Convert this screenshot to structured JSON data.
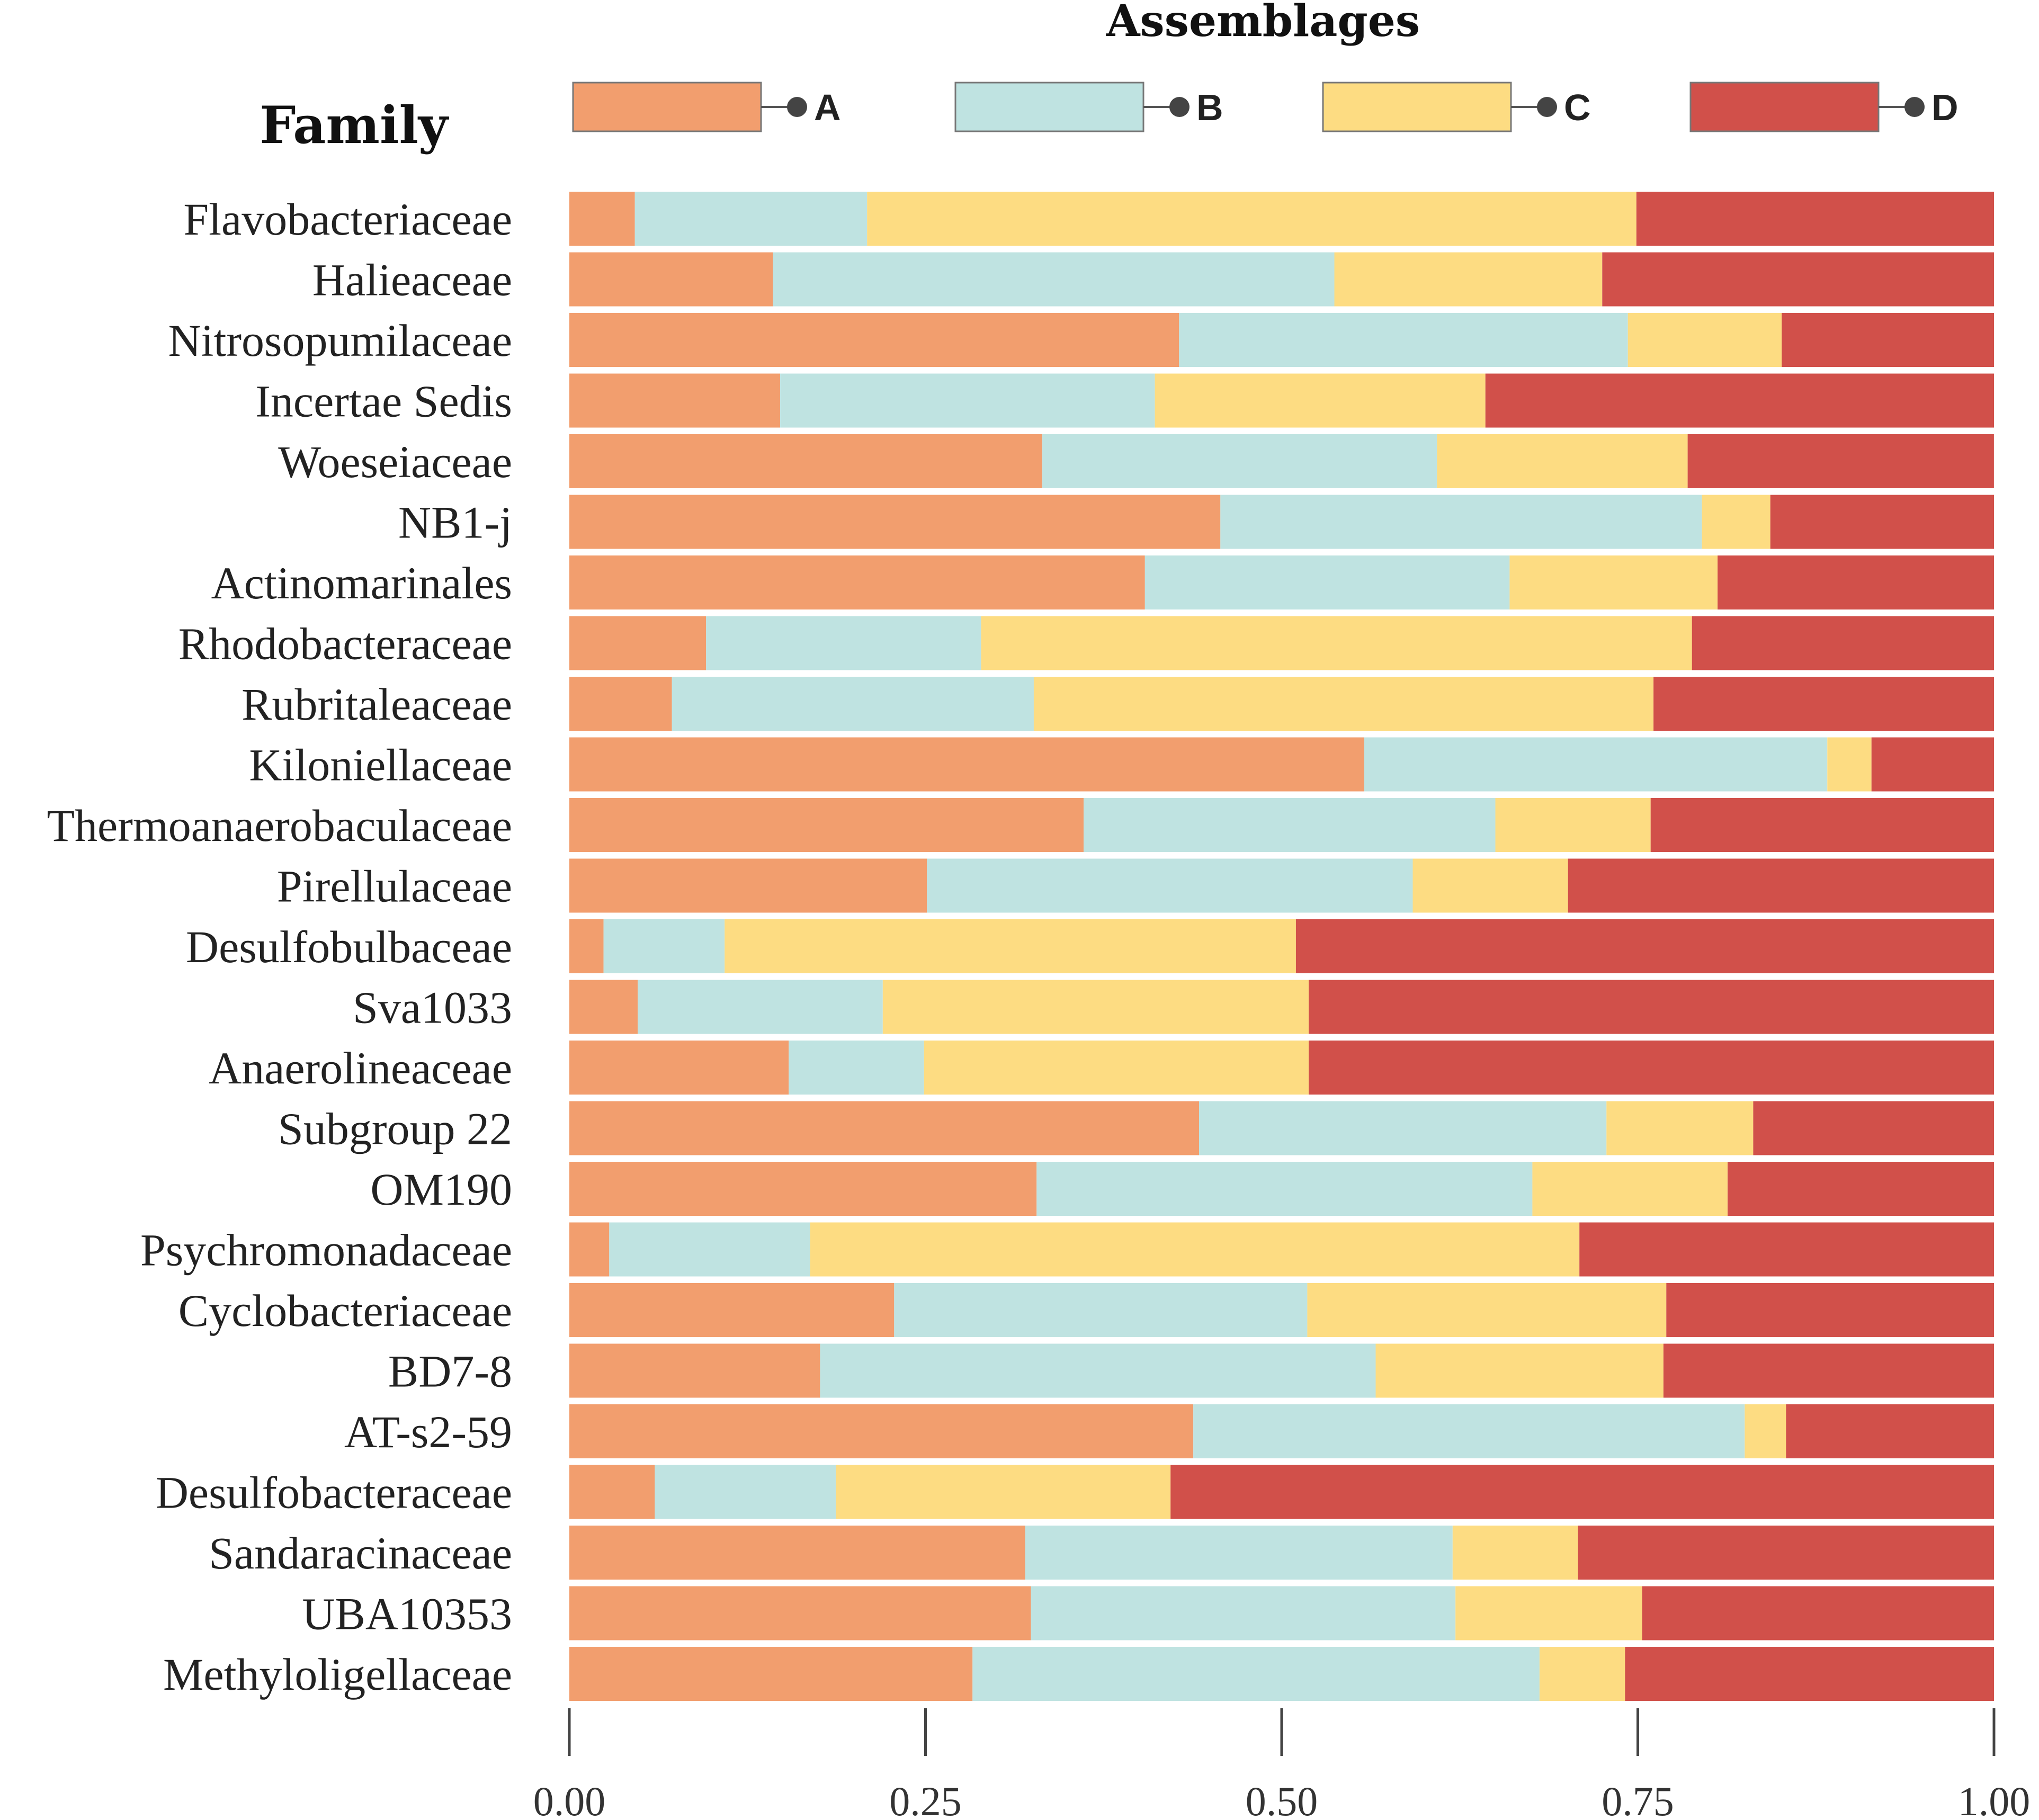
{
  "chart_data": {
    "type": "bar",
    "orientation": "horizontal",
    "stacked": true,
    "legend_title": "Assemblages",
    "y_title": "Family",
    "xlim": [
      0,
      1
    ],
    "xticks": [
      "0.00",
      "0.25",
      "0.50",
      "0.75",
      "1.00"
    ],
    "xtick_values": [
      0,
      0.25,
      0.5,
      0.75,
      1.0
    ],
    "categories": [
      "Flavobacteriaceae",
      "Halieaceae",
      "Nitrosopumilaceae",
      "Incertae Sedis",
      "Woeseiaceae",
      "NB1-j",
      "Actinomarinales",
      "Rhodobacteraceae",
      "Rubritaleaceae",
      "Kiloniellaceae",
      "Thermoanaerobaculaceae",
      "Pirellulaceae",
      "Desulfobulbaceae",
      "Sva1033",
      "Anaerolineaceae",
      "Subgroup 22",
      "OM190",
      "Psychromonadaceae",
      "Cyclobacteriaceae",
      "BD7-8",
      "AT-s2-59",
      "Desulfobacteraceae",
      "Sandaracinaceae",
      "UBA10353",
      "Methyloligellaceae"
    ],
    "series": [
      {
        "name": "A",
        "color": "#F29E6E",
        "values": [
          0.046,
          0.143,
          0.428,
          0.148,
          0.332,
          0.457,
          0.404,
          0.096,
          0.072,
          0.558,
          0.361,
          0.251,
          0.024,
          0.048,
          0.154,
          0.442,
          0.328,
          0.028,
          0.228,
          0.176,
          0.438,
          0.06,
          0.32,
          0.324,
          0.283
        ]
      },
      {
        "name": "B",
        "color": "#BFE3E1",
        "values": [
          0.163,
          0.394,
          0.315,
          0.263,
          0.277,
          0.338,
          0.256,
          0.193,
          0.254,
          0.325,
          0.289,
          0.341,
          0.085,
          0.172,
          0.095,
          0.286,
          0.348,
          0.141,
          0.29,
          0.39,
          0.387,
          0.127,
          0.3,
          0.298,
          0.398
        ]
      },
      {
        "name": "C",
        "color": "#FDDC82",
        "values": [
          0.54,
          0.188,
          0.108,
          0.232,
          0.176,
          0.048,
          0.146,
          0.499,
          0.435,
          0.031,
          0.109,
          0.109,
          0.401,
          0.299,
          0.27,
          0.103,
          0.137,
          0.54,
          0.252,
          0.202,
          0.029,
          0.235,
          0.088,
          0.131,
          0.06
        ]
      },
      {
        "name": "D",
        "color": "#D1504A",
        "values": [
          0.251,
          0.275,
          0.149,
          0.357,
          0.215,
          0.157,
          0.194,
          0.212,
          0.239,
          0.086,
          0.241,
          0.299,
          0.49,
          0.481,
          0.481,
          0.169,
          0.187,
          0.291,
          0.23,
          0.232,
          0.146,
          0.578,
          0.292,
          0.247,
          0.259
        ]
      }
    ]
  }
}
